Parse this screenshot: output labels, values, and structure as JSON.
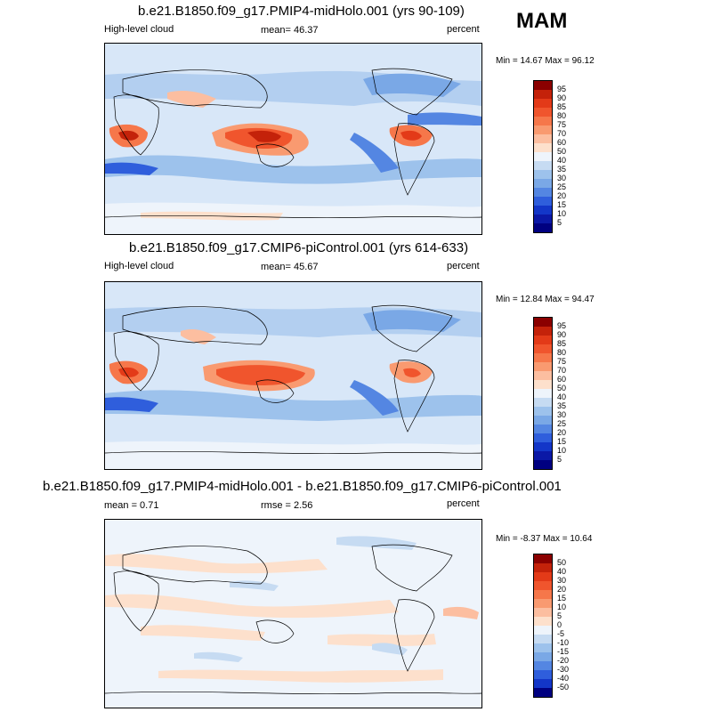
{
  "season": "MAM",
  "panels": [
    {
      "title": "b.e21.B1850.f09_g17.PMIP4-midHolo.001 (yrs 90-109)",
      "left_label": "High-level cloud",
      "center_label": "mean=  46.37",
      "right_label": "percent",
      "minmax": "Min =  14.67 Max =  96.12",
      "colorbar_labels": [
        "95",
        "90",
        "85",
        "80",
        "75",
        "70",
        "60",
        "50",
        "40",
        "35",
        "30",
        "25",
        "20",
        "15",
        "10",
        "5"
      ],
      "colorbar_colors": [
        "#8b0000",
        "#c4220a",
        "#e33a18",
        "#f0552d",
        "#f6774a",
        "#f99a70",
        "#fcbea0",
        "#fde0cc",
        "#eef4fb",
        "#c6dbf2",
        "#9dc2ec",
        "#7aa8e6",
        "#5486e2",
        "#2f5edc",
        "#1336c8",
        "#0b18a6",
        "#000080"
      ]
    },
    {
      "title": "b.e21.B1850.f09_g17.CMIP6-piControl.001 (yrs 614-633)",
      "left_label": "High-level cloud",
      "center_label": "mean=  45.67",
      "right_label": "percent",
      "minmax": "Min =  12.84 Max =  94.47",
      "colorbar_labels": [
        "95",
        "90",
        "85",
        "80",
        "75",
        "70",
        "60",
        "50",
        "40",
        "35",
        "30",
        "25",
        "20",
        "15",
        "10",
        "5"
      ],
      "colorbar_colors": [
        "#8b0000",
        "#c4220a",
        "#e33a18",
        "#f0552d",
        "#f6774a",
        "#f99a70",
        "#fcbea0",
        "#fde0cc",
        "#eef4fb",
        "#c6dbf2",
        "#9dc2ec",
        "#7aa8e6",
        "#5486e2",
        "#2f5edc",
        "#1336c8",
        "#0b18a6",
        "#000080"
      ]
    },
    {
      "title": "b.e21.B1850.f09_g17.PMIP4-midHolo.001 - b.e21.B1850.f09_g17.CMIP6-piControl.001",
      "left_label": "mean =   0.71",
      "center_label": "rmse =   2.56",
      "right_label": "percent",
      "minmax": "Min =  -8.37 Max =  10.64",
      "colorbar_labels": [
        "50",
        "40",
        "30",
        "20",
        "15",
        "10",
        "5",
        "0",
        "-5",
        "-10",
        "-15",
        "-20",
        "-30",
        "-40",
        "-50"
      ],
      "colorbar_colors": [
        "#8b0000",
        "#c4220a",
        "#e33a18",
        "#f0552d",
        "#f6774a",
        "#f99a70",
        "#fcbea0",
        "#fde0cc",
        "#eef4fb",
        "#c6dbf2",
        "#9dc2ec",
        "#7aa8e6",
        "#5486e2",
        "#2f5edc",
        "#1336c8",
        "#000080"
      ]
    }
  ]
}
